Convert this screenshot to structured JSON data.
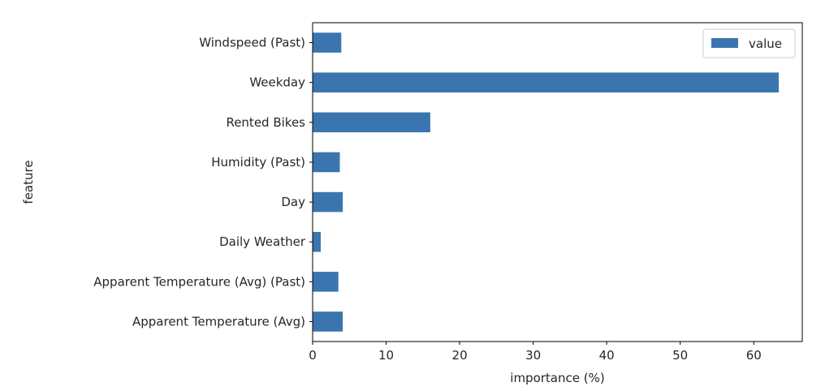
{
  "chart_data": {
    "type": "bar",
    "orientation": "horizontal",
    "title": "",
    "xlabel": "importance (%)",
    "ylabel": "feature",
    "categories": [
      "Windspeed (Past)",
      "Weekday",
      "Rented Bikes",
      "Humidity (Past)",
      "Day",
      "Daily Weather",
      "Apparent Temperature (Avg) (Past)",
      "Apparent Temperature (Avg)"
    ],
    "series": [
      {
        "name": "value",
        "color": "#3a75af",
        "values": [
          3.9,
          63.4,
          16.0,
          3.7,
          4.1,
          1.1,
          3.5,
          4.1
        ]
      }
    ],
    "xlim": [
      0,
      66.6
    ],
    "xticks": [
      0,
      10,
      20,
      30,
      40,
      50,
      60
    ],
    "grid": false,
    "legend": {
      "position": "top-right",
      "entries": [
        "value"
      ]
    }
  }
}
